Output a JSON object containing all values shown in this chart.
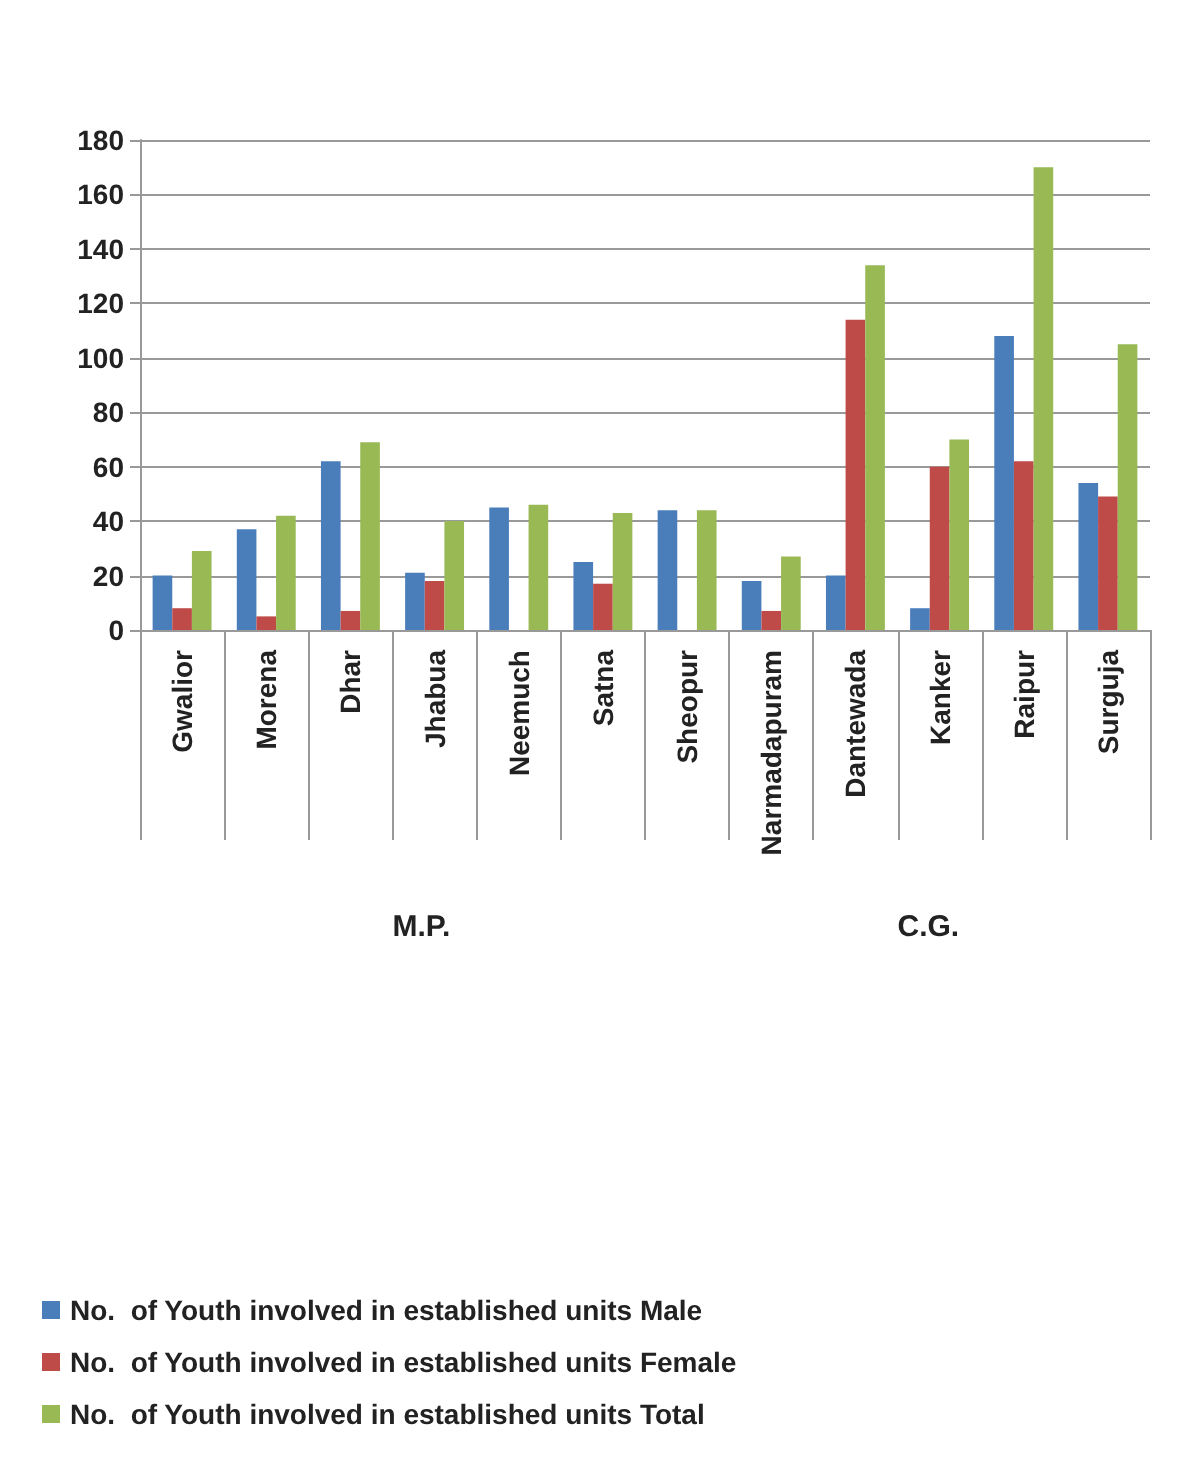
{
  "chart_data": {
    "type": "bar",
    "categories": [
      "Gwalior",
      "Morena",
      "Dhar",
      "Jhabua",
      "Neemuch",
      "Satna",
      "Sheopur",
      "Narmadapuram",
      "Dantewada",
      "Kanker",
      "Raipur",
      "Surguja"
    ],
    "series": [
      {
        "name": "No.  of Youth involved in established units Male",
        "color": "#4a7ebb",
        "values": [
          20,
          37,
          62,
          21,
          45,
          25,
          44,
          18,
          20,
          8,
          108,
          54
        ]
      },
      {
        "name": "No.  of Youth involved in established units Female",
        "color": "#be4b48",
        "values": [
          8,
          5,
          7,
          18,
          null,
          17,
          null,
          7,
          114,
          60,
          62,
          49
        ]
      },
      {
        "name": "No.  of Youth involved in established units Total",
        "color": "#98b954",
        "values": [
          29,
          42,
          69,
          40,
          46,
          43,
          44,
          27,
          134,
          70,
          170,
          105
        ]
      }
    ],
    "ylim": [
      0,
      180
    ],
    "yticks": [
      0,
      20,
      40,
      60,
      80,
      100,
      120,
      140,
      160,
      180
    ],
    "grid": "y",
    "legend": "bottom",
    "annotations": [
      "M.P.",
      "C.G."
    ]
  }
}
